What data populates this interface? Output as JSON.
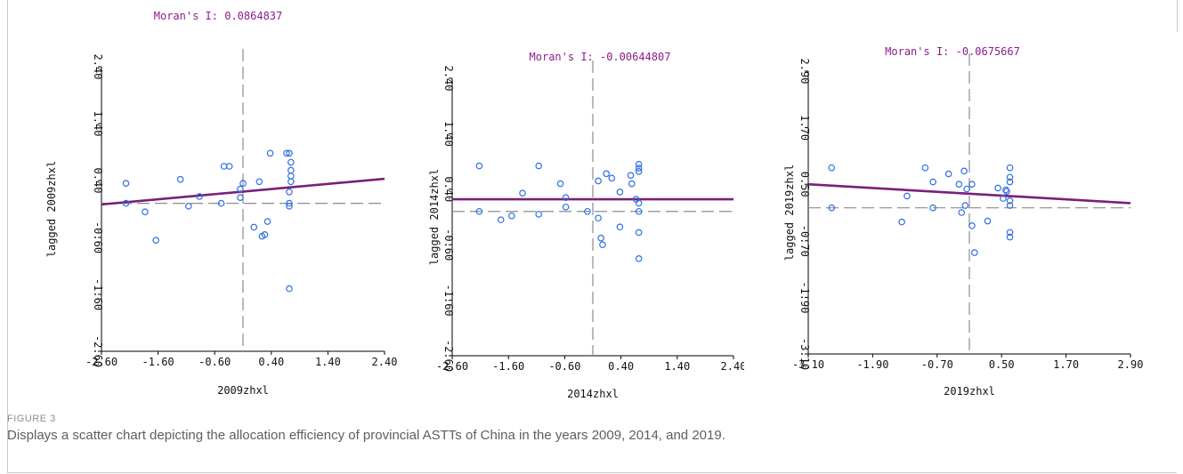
{
  "caption": {
    "figure_label": "FIGURE 3",
    "text": "Displays a scatter chart depicting the allocation efficiency of provincial ASTTs of China in the years 2009, 2014, and 2019."
  },
  "colors": {
    "point": "#2f6fe0",
    "regression": "#7a1f7a",
    "reference": "#8c8c8c",
    "title": "#8a1d8a"
  },
  "chart_data": [
    {
      "type": "scatter",
      "title": "Moran's I: 0.0864837",
      "xlabel": "2009zhxl",
      "ylabel": "lagged 2009zhxl",
      "xlim": [
        -2.6,
        2.6
      ],
      "ylim": [
        -2.6,
        2.4
      ],
      "xticks": [
        "-2.60",
        "-1.60",
        "-0.60",
        "0.40",
        "1.40",
        "2.40"
      ],
      "yticks": [
        "-2.60",
        "-1.60",
        "-0.60",
        "0.40",
        "1.40",
        "2.40"
      ],
      "reference_lines": {
        "x": 0,
        "y": 0
      },
      "regression_line": {
        "x": [
          -2.6,
          2.6
        ],
        "y": [
          -0.02,
          0.43
        ]
      },
      "points": [
        [
          -2.15,
          0.35
        ],
        [
          -2.15,
          0.0
        ],
        [
          -1.8,
          -0.15
        ],
        [
          -1.6,
          -0.65
        ],
        [
          -1.15,
          0.42
        ],
        [
          -1.0,
          -0.05
        ],
        [
          -0.8,
          0.12
        ],
        [
          -0.4,
          0.0
        ],
        [
          -0.35,
          0.65
        ],
        [
          -0.25,
          0.65
        ],
        [
          -0.05,
          0.25
        ],
        [
          -0.05,
          0.1
        ],
        [
          0.0,
          0.35
        ],
        [
          0.2,
          -0.42
        ],
        [
          0.3,
          0.38
        ],
        [
          0.35,
          -0.58
        ],
        [
          0.4,
          -0.55
        ],
        [
          0.45,
          -0.32
        ],
        [
          0.5,
          0.88
        ],
        [
          0.8,
          0.88
        ],
        [
          0.85,
          0.88
        ],
        [
          0.85,
          0.2
        ],
        [
          0.85,
          0.0
        ],
        [
          0.85,
          -0.05
        ],
        [
          0.88,
          0.38
        ],
        [
          0.88,
          0.48
        ],
        [
          0.88,
          0.58
        ],
        [
          0.88,
          0.72
        ],
        [
          0.85,
          -1.5
        ]
      ]
    },
    {
      "type": "scatter",
      "title": "Moran's I: -0.00644807",
      "xlabel": "2014zhxl",
      "ylabel": "lagged 2014zhxl",
      "xlim": [
        -2.6,
        2.6
      ],
      "ylim": [
        -2.6,
        2.4
      ],
      "xticks": [
        "-2.60",
        "-1.60",
        "-0.60",
        "0.40",
        "1.40",
        "2.40"
      ],
      "yticks": [
        "-2.60",
        "-1.60",
        "-0.60",
        "0.40",
        "1.40",
        "2.40"
      ],
      "reference_lines": {
        "x": 0,
        "y": 0
      },
      "regression_line": {
        "x": [
          -2.6,
          2.6
        ],
        "y": [
          0.22,
          0.22
        ]
      },
      "points": [
        [
          -2.1,
          0.82
        ],
        [
          -2.1,
          0.0
        ],
        [
          -1.7,
          -0.15
        ],
        [
          -1.5,
          -0.08
        ],
        [
          -1.3,
          0.33
        ],
        [
          -1.0,
          0.82
        ],
        [
          -1.0,
          -0.05
        ],
        [
          -0.6,
          0.5
        ],
        [
          -0.5,
          0.25
        ],
        [
          -0.5,
          0.08
        ],
        [
          -0.1,
          0.0
        ],
        [
          0.1,
          0.55
        ],
        [
          0.1,
          -0.12
        ],
        [
          0.15,
          -0.48
        ],
        [
          0.18,
          -0.6
        ],
        [
          0.25,
          0.68
        ],
        [
          0.35,
          0.6
        ],
        [
          0.5,
          -0.28
        ],
        [
          0.5,
          0.35
        ],
        [
          0.7,
          0.65
        ],
        [
          0.72,
          0.5
        ],
        [
          0.8,
          0.22
        ],
        [
          0.85,
          0.72
        ],
        [
          0.85,
          0.78
        ],
        [
          0.85,
          0.85
        ],
        [
          0.85,
          0.15
        ],
        [
          0.85,
          0.0
        ],
        [
          0.85,
          -0.38
        ],
        [
          0.85,
          -0.85
        ]
      ]
    },
    {
      "type": "scatter",
      "title": "Moran's I: -0.0675667",
      "xlabel": "2019zhxl",
      "ylabel": "lagged 2019zhxl",
      "xlim": [
        -3.1,
        3.1
      ],
      "ylim": [
        -3.1,
        2.9
      ],
      "xticks": [
        "-3.10",
        "-1.90",
        "-0.70",
        "0.50",
        "1.70",
        "2.90"
      ],
      "yticks": [
        "-3.10",
        "-1.90",
        "-0.70",
        "0.50",
        "1.70",
        "2.90"
      ],
      "reference_lines": {
        "x": 0,
        "y": 0
      },
      "regression_line": {
        "x": [
          -3.1,
          3.1
        ],
        "y": [
          0.5,
          0.1
        ]
      },
      "points": [
        [
          -2.65,
          0.85
        ],
        [
          -2.65,
          0.0
        ],
        [
          -1.3,
          -0.3
        ],
        [
          -1.2,
          0.25
        ],
        [
          -0.85,
          0.85
        ],
        [
          -0.7,
          0.55
        ],
        [
          -0.7,
          0.0
        ],
        [
          -0.4,
          0.72
        ],
        [
          -0.2,
          0.5
        ],
        [
          -0.15,
          -0.1
        ],
        [
          -0.1,
          0.78
        ],
        [
          -0.08,
          0.05
        ],
        [
          -0.05,
          0.4
        ],
        [
          0.05,
          0.5
        ],
        [
          0.05,
          -0.38
        ],
        [
          0.1,
          -0.95
        ],
        [
          0.35,
          -0.28
        ],
        [
          0.55,
          0.42
        ],
        [
          0.65,
          0.2
        ],
        [
          0.7,
          0.38
        ],
        [
          0.72,
          0.35
        ],
        [
          0.78,
          0.85
        ],
        [
          0.78,
          0.65
        ],
        [
          0.78,
          0.55
        ],
        [
          0.78,
          0.15
        ],
        [
          0.78,
          0.05
        ],
        [
          0.78,
          -0.52
        ],
        [
          0.78,
          -0.62
        ]
      ]
    }
  ]
}
